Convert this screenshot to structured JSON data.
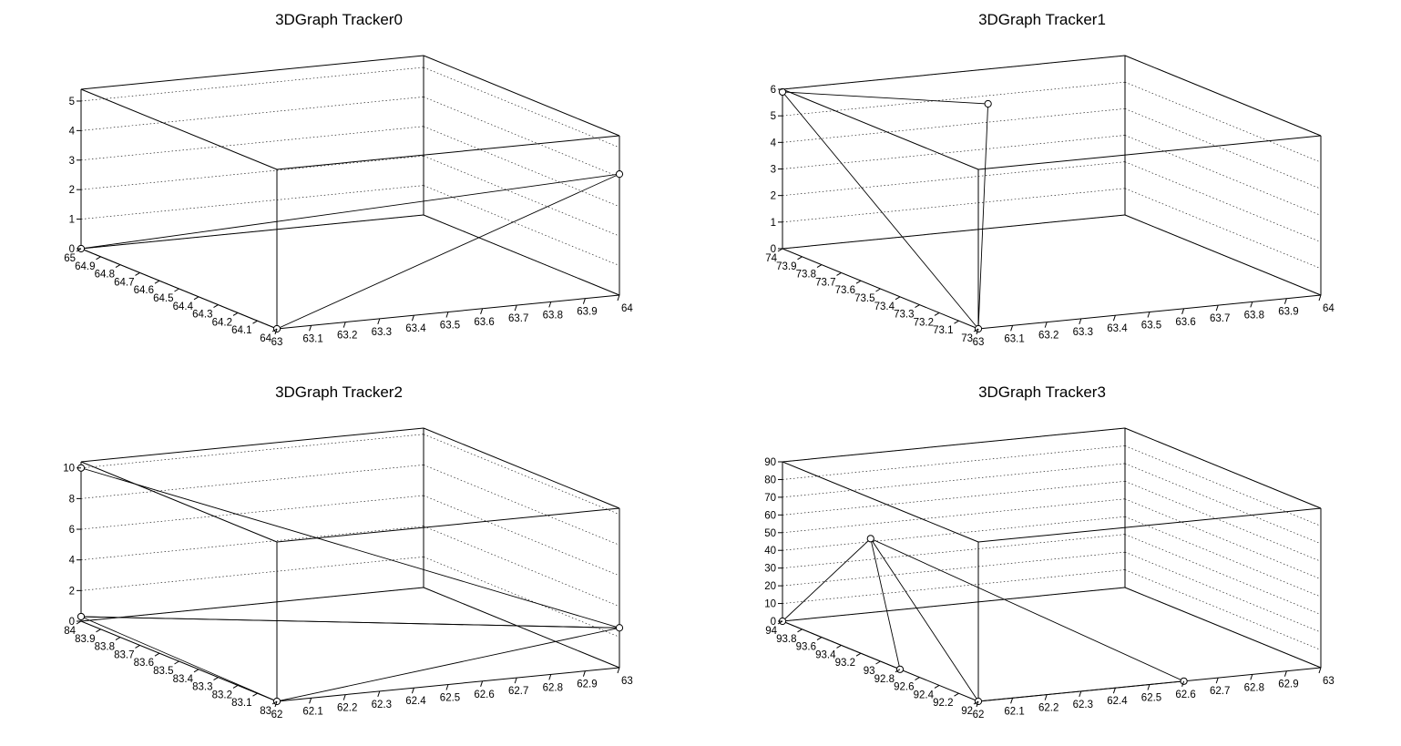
{
  "colors": {
    "low": "#1a237e",
    "mid1": "#1565d8",
    "mid2": "#0aa0d0",
    "mid3": "#40c0a0",
    "mid4": "#b0c050",
    "high": "#ffe01a"
  },
  "chart_data": [
    {
      "type": "surface3d",
      "title": "3DGraph Tracker0",
      "xlabel": "",
      "ylabel": "",
      "zlabel": "",
      "xlim": [
        63,
        64
      ],
      "ylim": [
        64,
        65
      ],
      "zlim": [
        0,
        5.4
      ],
      "xticks": [
        "63",
        "63.1",
        "63.2",
        "63.3",
        "63.4",
        "63.5",
        "63.6",
        "63.7",
        "63.8",
        "63.9",
        "64"
      ],
      "yticks": [
        "64",
        "64.1",
        "64.2",
        "64.3",
        "64.4",
        "64.5",
        "64.6",
        "64.7",
        "64.8",
        "64.9",
        "65"
      ],
      "zticks": [
        "0",
        "1",
        "2",
        "3",
        "4",
        "5"
      ],
      "zgrid": [
        0,
        1,
        2,
        3,
        4,
        5
      ],
      "points": [
        {
          "x": 63,
          "y": 64,
          "z": 0
        },
        {
          "x": 63,
          "y": 65,
          "z": 0
        },
        {
          "x": 64,
          "y": 64,
          "z": 4.1
        }
      ],
      "triangles": [
        [
          0,
          1,
          2
        ]
      ]
    },
    {
      "type": "surface3d",
      "title": "3DGraph Tracker1",
      "xlabel": "",
      "ylabel": "",
      "zlabel": "",
      "xlim": [
        63,
        64
      ],
      "ylim": [
        73,
        74
      ],
      "zlim": [
        0,
        6
      ],
      "xticks": [
        "63",
        "63.1",
        "63.2",
        "63.3",
        "63.4",
        "63.5",
        "63.6",
        "63.7",
        "63.8",
        "63.9",
        "64"
      ],
      "yticks": [
        "73",
        "73.1",
        "73.2",
        "73.3",
        "73.4",
        "73.5",
        "73.6",
        "73.7",
        "73.8",
        "73.9",
        "74"
      ],
      "zticks": [
        "0",
        "1",
        "2",
        "3",
        "4",
        "5",
        "6"
      ],
      "zgrid": [
        0,
        1,
        2,
        3,
        4,
        5,
        6
      ],
      "points": [
        {
          "x": 63,
          "y": 73,
          "z": 0
        },
        {
          "x": 63,
          "y": 74,
          "z": 5.9
        },
        {
          "x": 63.4,
          "y": 73.65,
          "z": 6.0
        }
      ],
      "triangles": [
        [
          0,
          1,
          2
        ]
      ]
    },
    {
      "type": "surface3d",
      "title": "3DGraph Tracker2",
      "xlabel": "",
      "ylabel": "",
      "zlabel": "",
      "xlim": [
        62,
        63
      ],
      "ylim": [
        83,
        84
      ],
      "zlim": [
        0,
        10.4
      ],
      "xticks": [
        "62",
        "62.1",
        "62.2",
        "62.3",
        "62.4",
        "62.5",
        "62.6",
        "62.7",
        "62.8",
        "62.9",
        "63"
      ],
      "yticks": [
        "83",
        "83.1",
        "83.2",
        "83.3",
        "83.4",
        "83.5",
        "83.6",
        "83.7",
        "83.8",
        "83.9",
        "84"
      ],
      "zticks": [
        "0",
        "2",
        "4",
        "6",
        "8",
        "10"
      ],
      "zgrid": [
        0,
        2,
        4,
        6,
        8,
        10
      ],
      "points": [
        {
          "x": 62,
          "y": 83,
          "z": 0
        },
        {
          "x": 62,
          "y": 84,
          "z": 0.3
        },
        {
          "x": 63,
          "y": 83,
          "z": 2.6
        },
        {
          "x": 62,
          "y": 84,
          "z": 10.0
        }
      ],
      "triangles": [
        [
          0,
          1,
          2
        ],
        [
          1,
          2,
          3
        ]
      ]
    },
    {
      "type": "surface3d",
      "title": "3DGraph Tracker3",
      "xlabel": "",
      "ylabel": "",
      "zlabel": "",
      "xlim": [
        62,
        63
      ],
      "ylim": [
        92,
        94
      ],
      "zlim": [
        0,
        90
      ],
      "xticks": [
        "62",
        "62.1",
        "62.2",
        "62.3",
        "62.4",
        "62.5",
        "62.6",
        "62.7",
        "62.8",
        "62.9",
        "63"
      ],
      "yticks": [
        "92",
        "92.2",
        "92.4",
        "92.6",
        "92.8",
        "93",
        "93.2",
        "93.4",
        "93.6",
        "93.8",
        "94"
      ],
      "zticks": [
        "0",
        "10",
        "20",
        "30",
        "40",
        "50",
        "60",
        "70",
        "80",
        "90"
      ],
      "zgrid": [
        0,
        10,
        20,
        30,
        40,
        50,
        60,
        70,
        80,
        90
      ],
      "points": [
        {
          "x": 62,
          "y": 92,
          "z": 0
        },
        {
          "x": 62,
          "y": 94,
          "z": 0
        },
        {
          "x": 62.6,
          "y": 92,
          "z": 0
        },
        {
          "x": 62,
          "y": 93.1,
          "z": 67
        },
        {
          "x": 62,
          "y": 92.8,
          "z": 0
        }
      ],
      "triangles": [
        [
          1,
          3,
          4
        ],
        [
          0,
          3,
          2
        ]
      ]
    }
  ]
}
